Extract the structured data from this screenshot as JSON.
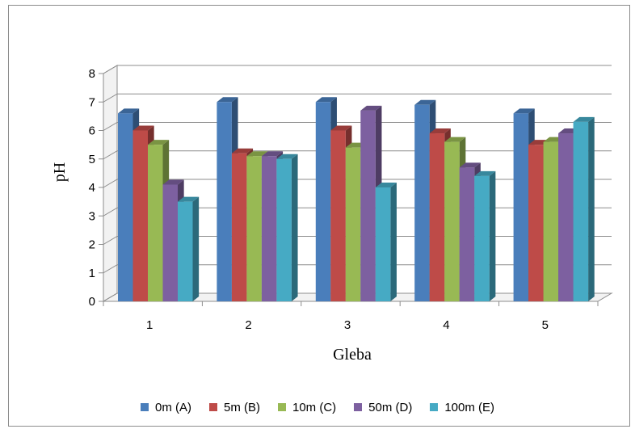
{
  "chart_data": {
    "type": "bar",
    "title": "",
    "xlabel": "Gleba",
    "ylabel": "pH",
    "categories": [
      "1",
      "2",
      "3",
      "4",
      "5"
    ],
    "ylim": [
      0,
      8
    ],
    "yticks": [
      "0",
      "1",
      "2",
      "3",
      "4",
      "5",
      "6",
      "7",
      "8"
    ],
    "grid": true,
    "legend_position": "bottom",
    "series": [
      {
        "name": "0m (A)",
        "color": "#4a7ebb",
        "values": [
          6.6,
          7.0,
          7.0,
          6.9,
          6.6
        ]
      },
      {
        "name": "5m (B)",
        "color": "#be4b48",
        "values": [
          6.0,
          5.2,
          6.0,
          5.9,
          5.5
        ]
      },
      {
        "name": "10m (C)",
        "color": "#98b954",
        "values": [
          5.5,
          5.1,
          5.4,
          5.6,
          5.6
        ]
      },
      {
        "name": "50m (D)",
        "color": "#7d60a0",
        "values": [
          4.1,
          5.1,
          6.7,
          4.7,
          5.9
        ]
      },
      {
        "name": "100m (E)",
        "color": "#46aac4",
        "values": [
          3.5,
          5.0,
          4.0,
          4.4,
          6.3
        ]
      }
    ]
  }
}
